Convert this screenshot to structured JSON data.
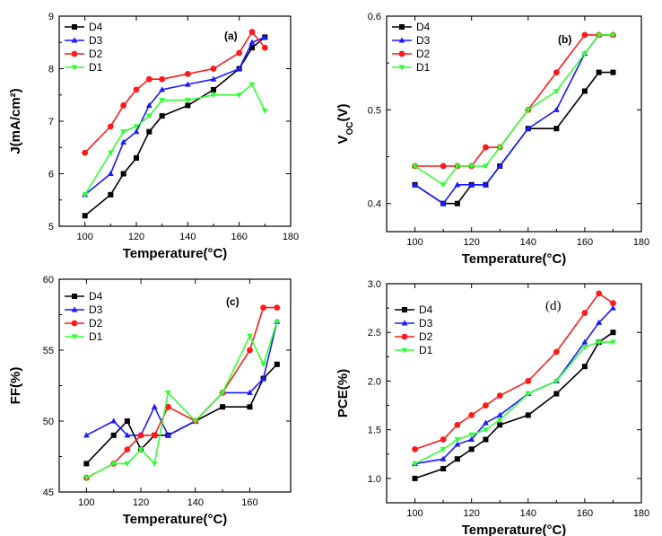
{
  "chart_data": [
    {
      "type": "line",
      "panel": "(a)",
      "xlabel": "Temperature(°C)",
      "ylabel": "J(mA/cm²)",
      "xlim": [
        90,
        180
      ],
      "ylim": [
        5,
        9
      ],
      "xticks": [
        100,
        120,
        140,
        160,
        180
      ],
      "yticks": [
        5,
        6,
        7,
        8,
        9
      ],
      "legend_position": "top-left",
      "series": [
        {
          "name": "D4",
          "color": "#000000",
          "marker": "square",
          "x": [
            100,
            110,
            115,
            120,
            125,
            130,
            140,
            150,
            160,
            165,
            170
          ],
          "y": [
            5.2,
            5.6,
            6.0,
            6.3,
            6.8,
            7.1,
            7.3,
            7.6,
            8.0,
            8.4,
            8.6
          ]
        },
        {
          "name": "D3",
          "color": "#1a1aff",
          "marker": "triangle-up",
          "x": [
            100,
            110,
            115,
            120,
            125,
            130,
            140,
            150,
            160,
            165,
            170
          ],
          "y": [
            5.6,
            6.0,
            6.6,
            6.8,
            7.3,
            7.6,
            7.7,
            7.8,
            8.0,
            8.5,
            8.6
          ]
        },
        {
          "name": "D2",
          "color": "#ff1a1a",
          "marker": "circle",
          "x": [
            100,
            110,
            115,
            120,
            125,
            130,
            140,
            150,
            160,
            165,
            170
          ],
          "y": [
            6.4,
            6.9,
            7.3,
            7.6,
            7.8,
            7.8,
            7.9,
            8.0,
            8.3,
            8.7,
            8.4
          ]
        },
        {
          "name": "D1",
          "color": "#33ff33",
          "marker": "triangle-down",
          "x": [
            100,
            110,
            115,
            120,
            125,
            130,
            140,
            150,
            160,
            165,
            170
          ],
          "y": [
            5.6,
            6.4,
            6.8,
            6.9,
            7.1,
            7.4,
            7.4,
            7.5,
            7.5,
            7.7,
            7.2
          ]
        }
      ]
    },
    {
      "type": "line",
      "panel": "(b)",
      "xlabel": "Temperature(°C)",
      "ylabel": "V",
      "ylabel_sub": "OC",
      "ylabel_unit": "(V)",
      "xlim": [
        90,
        180
      ],
      "ylim": [
        0.37,
        0.6
      ],
      "xticks": [
        100,
        120,
        140,
        160,
        180
      ],
      "yticks": [
        0.4,
        0.5,
        0.6
      ],
      "legend_position": "top-left",
      "series": [
        {
          "name": "D4",
          "color": "#000000",
          "marker": "square",
          "x": [
            100,
            110,
            115,
            120,
            125,
            130,
            140,
            150,
            160,
            165,
            170
          ],
          "y": [
            0.42,
            0.4,
            0.4,
            0.42,
            0.42,
            0.44,
            0.48,
            0.48,
            0.52,
            0.54,
            0.54
          ]
        },
        {
          "name": "D3",
          "color": "#1a1aff",
          "marker": "triangle-up",
          "x": [
            100,
            110,
            115,
            120,
            125,
            130,
            140,
            150,
            160,
            165,
            170
          ],
          "y": [
            0.42,
            0.4,
            0.42,
            0.42,
            0.42,
            0.44,
            0.48,
            0.5,
            0.56,
            0.58,
            0.58
          ]
        },
        {
          "name": "D2",
          "color": "#ff1a1a",
          "marker": "circle",
          "x": [
            100,
            110,
            115,
            120,
            125,
            130,
            140,
            150,
            160,
            165,
            170
          ],
          "y": [
            0.44,
            0.44,
            0.44,
            0.44,
            0.46,
            0.46,
            0.5,
            0.54,
            0.58,
            0.58,
            0.58
          ]
        },
        {
          "name": "D1",
          "color": "#33ff33",
          "marker": "triangle-down",
          "x": [
            100,
            110,
            115,
            120,
            125,
            130,
            140,
            150,
            160,
            165,
            170
          ],
          "y": [
            0.44,
            0.42,
            0.44,
            0.44,
            0.44,
            0.46,
            0.5,
            0.52,
            0.56,
            0.58,
            0.58
          ]
        }
      ]
    },
    {
      "type": "line",
      "panel": "(c)",
      "xlabel": "Temperature(°C)",
      "ylabel": "FF(%)",
      "xlim": [
        90,
        175
      ],
      "ylim": [
        45,
        60
      ],
      "xticks": [
        100,
        120,
        140,
        160
      ],
      "yticks": [
        45,
        50,
        55,
        60
      ],
      "legend_position": "top-left",
      "series": [
        {
          "name": "D4",
          "color": "#000000",
          "marker": "square",
          "x": [
            100,
            110,
            115,
            120,
            125,
            130,
            140,
            150,
            160,
            165,
            170
          ],
          "y": [
            47,
            49,
            50,
            48,
            49,
            49,
            50,
            51,
            51,
            53,
            54
          ]
        },
        {
          "name": "D3",
          "color": "#1a1aff",
          "marker": "triangle-up",
          "x": [
            100,
            110,
            115,
            120,
            125,
            130,
            140,
            150,
            160,
            165,
            170
          ],
          "y": [
            49,
            50,
            49,
            49,
            51,
            49,
            50,
            52,
            52,
            53,
            57
          ]
        },
        {
          "name": "D2",
          "color": "#ff1a1a",
          "marker": "circle",
          "x": [
            100,
            110,
            115,
            120,
            125,
            130,
            140,
            150,
            160,
            165,
            170
          ],
          "y": [
            46,
            47,
            48,
            49,
            49,
            51,
            50,
            52,
            55,
            58,
            58
          ]
        },
        {
          "name": "D1",
          "color": "#33ff33",
          "marker": "triangle-down",
          "x": [
            100,
            110,
            115,
            120,
            125,
            130,
            140,
            150,
            160,
            165,
            170
          ],
          "y": [
            46,
            47,
            47,
            48,
            47,
            52,
            50,
            52,
            56,
            54,
            57
          ]
        }
      ]
    },
    {
      "type": "line",
      "panel": "(d)",
      "xlabel": "Temperature(°C)",
      "ylabel": "PCE(%)",
      "xlim": [
        90,
        180
      ],
      "ylim": [
        0.75,
        3.0
      ],
      "xticks": [
        100,
        120,
        140,
        160,
        180
      ],
      "yticks": [
        1.0,
        1.5,
        2.0,
        2.5,
        3.0
      ],
      "ytick_labels": [
        "1.0",
        "1.5",
        "2.0",
        "2.5",
        "3.0"
      ],
      "legend_position": "top-left",
      "series": [
        {
          "name": "D4",
          "color": "#000000",
          "marker": "square",
          "x": [
            100,
            110,
            115,
            120,
            125,
            130,
            140,
            150,
            160,
            165,
            170
          ],
          "y": [
            1.0,
            1.1,
            1.2,
            1.3,
            1.4,
            1.55,
            1.65,
            1.87,
            2.15,
            2.4,
            2.5
          ]
        },
        {
          "name": "D3",
          "color": "#1a1aff",
          "marker": "triangle-up",
          "x": [
            100,
            110,
            115,
            120,
            125,
            130,
            140,
            150,
            160,
            165,
            170
          ],
          "y": [
            1.15,
            1.2,
            1.35,
            1.4,
            1.57,
            1.65,
            1.87,
            2.0,
            2.4,
            2.6,
            2.75
          ]
        },
        {
          "name": "D2",
          "color": "#ff1a1a",
          "marker": "circle",
          "x": [
            100,
            110,
            115,
            120,
            125,
            130,
            140,
            150,
            160,
            165,
            170
          ],
          "y": [
            1.3,
            1.4,
            1.55,
            1.65,
            1.75,
            1.85,
            2.0,
            2.3,
            2.7,
            2.9,
            2.8
          ]
        },
        {
          "name": "D1",
          "color": "#33ff33",
          "marker": "triangle-down",
          "x": [
            100,
            110,
            115,
            120,
            125,
            130,
            140,
            150,
            160,
            165,
            170
          ],
          "y": [
            1.15,
            1.3,
            1.4,
            1.45,
            1.5,
            1.6,
            1.87,
            2.0,
            2.35,
            2.4,
            2.4
          ]
        }
      ]
    }
  ]
}
